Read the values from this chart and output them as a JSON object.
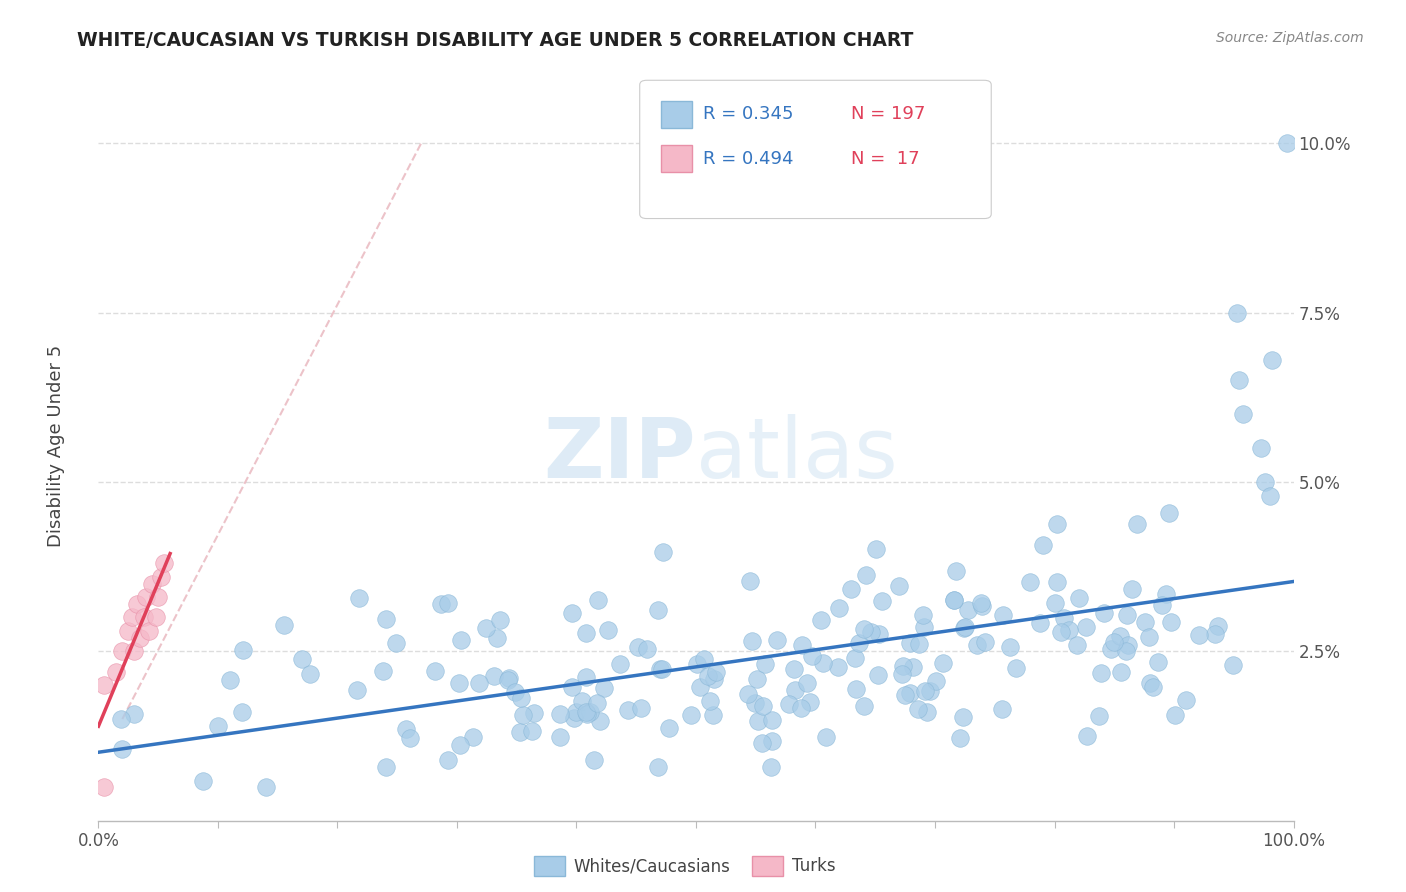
{
  "title": "WHITE/CAUCASIAN VS TURKISH DISABILITY AGE UNDER 5 CORRELATION CHART",
  "source": "Source: ZipAtlas.com",
  "ylabel": "Disability Age Under 5",
  "xlim": [
    0,
    1.0
  ],
  "ylim": [
    0,
    0.108
  ],
  "xtick_labels": [
    "0.0%",
    "",
    "",
    "",
    "",
    "",
    "",
    "",
    "",
    "",
    "100.0%"
  ],
  "xtick_vals": [
    0.0,
    0.1,
    0.2,
    0.3,
    0.4,
    0.5,
    0.6,
    0.7,
    0.8,
    0.9,
    1.0
  ],
  "ytick_labels": [
    "2.5%",
    "5.0%",
    "7.5%",
    "10.0%"
  ],
  "ytick_vals": [
    0.025,
    0.05,
    0.075,
    0.1
  ],
  "blue_R": 0.345,
  "blue_N": 197,
  "pink_R": 0.494,
  "pink_N": 17,
  "blue_color": "#a8cce8",
  "pink_color": "#f5b8c8",
  "blue_line_color": "#3575c0",
  "pink_line_color": "#e0405a",
  "dashed_line_color": "#e8b4bc",
  "watermark_zip": "ZIP",
  "watermark_atlas": "atlas",
  "legend_R_color": "#3575c0",
  "legend_N_color": "#e0405a",
  "background_color": "#ffffff",
  "grid_color": "#dddddd",
  "title_color": "#222222",
  "source_color": "#888888"
}
